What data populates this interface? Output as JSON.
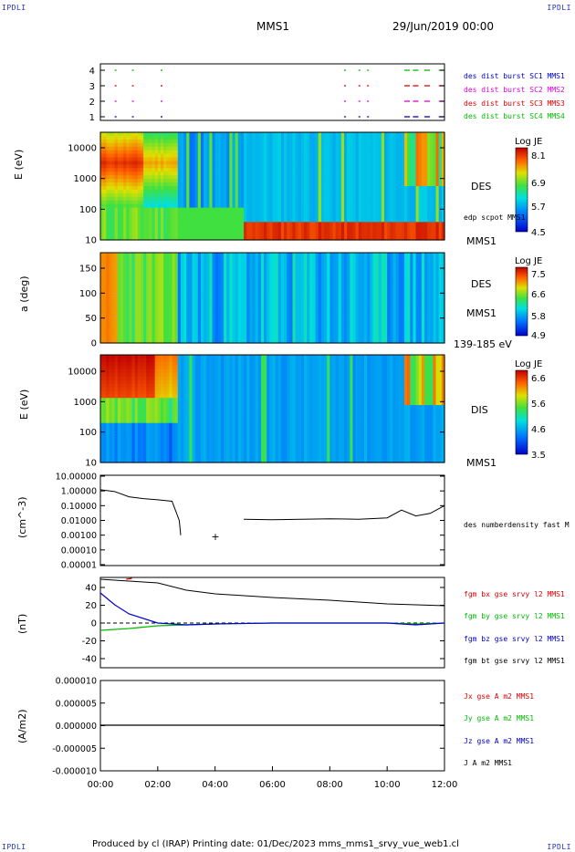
{
  "corners": {
    "tl": "IPDLI",
    "tr": "IPDLI",
    "bl": "IPDLI",
    "br": "IPDLI"
  },
  "header": {
    "mission": "MMS1",
    "date": "29/Jun/2019 00:00"
  },
  "footer": "Produced by cl (IRAP)   Printing date: 01/Dec/2023   mms_mms1_srvy_vue_web1.cl",
  "time_axis": [
    "00:00",
    "02:00",
    "04:00",
    "06:00",
    "08:00",
    "10:00",
    "12:00"
  ],
  "colors": {
    "red": "#dd0000",
    "magenta": "#dd00dd",
    "green": "#00bb00",
    "blue": "#0000cc",
    "black": "#000000"
  },
  "burst_panel": {
    "y_ticks": [
      "1",
      "2",
      "3",
      "4"
    ],
    "legend": [
      {
        "label": "des dist burst SC1 MMS1",
        "color": "#0000cc"
      },
      {
        "label": "des dist burst SC2 MMS2",
        "color": "#dd00dd"
      },
      {
        "label": "des dist burst SC3 MMS3",
        "color": "#dd0000"
      },
      {
        "label": "des dist burst SC4 MMS4",
        "color": "#00bb00"
      }
    ]
  },
  "des_energy": {
    "ylabel": "E (eV)",
    "y_ticks": [
      "10000",
      "1000",
      "100",
      "10"
    ],
    "label": "DES",
    "sc": "MMS1",
    "overlay": "edp scpot MMS1",
    "cbar_title": "Log JE",
    "cbar_ticks": [
      "8.1",
      "6.9",
      "5.7",
      "4.5"
    ]
  },
  "des_pitch": {
    "ylabel": "a (deg)",
    "y_ticks": [
      "150",
      "100",
      "50",
      "0"
    ],
    "label": "DES",
    "sc": "MMS1",
    "range": "139-185 eV",
    "cbar_title": "Log JE",
    "cbar_ticks": [
      "7.5",
      "6.6",
      "5.8",
      "4.9"
    ]
  },
  "dis_energy": {
    "ylabel": "E (eV)",
    "y_ticks": [
      "10000",
      "1000",
      "100",
      "10"
    ],
    "label": "DIS",
    "sc": "MMS1",
    "cbar_title": "Log JE",
    "cbar_ticks": [
      "6.6",
      "5.6",
      "4.6",
      "3.5"
    ]
  },
  "density": {
    "ylabel": "(cm^-3)",
    "y_ticks": [
      "10.00000",
      "1.00000",
      "0.10000",
      "0.01000",
      "0.00100",
      "0.00010",
      "0.00001"
    ],
    "legend": "des numberdensity fast M"
  },
  "bfield": {
    "ylabel": "(nT)",
    "y_ticks": [
      "40",
      "20",
      "0",
      "-20",
      "-40"
    ],
    "legend": [
      {
        "label": "fgm bx gse srvy l2 MMS1",
        "color": "#dd0000"
      },
      {
        "label": "fgm by gse srvy l2 MMS1",
        "color": "#00bb00"
      },
      {
        "label": "fgm bz gse srvy l2 MMS1",
        "color": "#0000cc"
      },
      {
        "label": "fgm bt gse srvy l2 MMS1",
        "color": "#000000"
      }
    ]
  },
  "current": {
    "ylabel": "(A/m2)",
    "y_ticks": [
      "0.000010",
      "0.000005",
      "0.000000",
      "-0.000005",
      "-0.000010"
    ],
    "legend": [
      {
        "label": "Jx gse A m2 MMS1",
        "color": "#dd0000"
      },
      {
        "label": "Jy gse A m2 MMS1",
        "color": "#00bb00"
      },
      {
        "label": "Jz gse A m2 MMS1",
        "color": "#0000cc"
      },
      {
        "label": "J A m2 MMS1",
        "color": "#000000"
      }
    ]
  },
  "chart_data": [
    {
      "type": "scatter",
      "name": "burst flags",
      "x": [
        "00:00",
        "12:00"
      ],
      "ylim": [
        1,
        4
      ]
    },
    {
      "type": "heatmap",
      "name": "DES energy spectrogram",
      "ylim": [
        10,
        30000
      ],
      "log_y": true,
      "colorbar": [
        4.5,
        8.1
      ]
    },
    {
      "type": "heatmap",
      "name": "DES pitch angle",
      "ylim": [
        0,
        180
      ],
      "colorbar": [
        4.9,
        7.5
      ]
    },
    {
      "type": "heatmap",
      "name": "DIS energy spectrogram",
      "ylim": [
        10,
        30000
      ],
      "log_y": true,
      "colorbar": [
        3.5,
        6.6
      ]
    },
    {
      "type": "line",
      "name": "density",
      "ylim": [
        1e-05,
        10
      ],
      "log_y": true,
      "x": [
        0,
        0.5,
        1,
        1.5,
        2,
        2.5,
        2.75,
        2.8,
        3,
        5,
        6,
        7,
        8,
        9,
        10,
        10.5,
        11,
        11.5,
        12
      ],
      "y": [
        1.2,
        0.9,
        0.4,
        0.3,
        0.25,
        0.2,
        0.01,
        0.001,
        0.02,
        0.012,
        0.011,
        0.012,
        0.013,
        0.012,
        0.015,
        0.05,
        0.02,
        0.03,
        0.1
      ]
    },
    {
      "type": "line",
      "name": "B components",
      "ylim": [
        -50,
        50
      ],
      "x": [
        0,
        0.5,
        1,
        2,
        3,
        4,
        6,
        8,
        10,
        11,
        12
      ],
      "bt": [
        48,
        47,
        46,
        44,
        36,
        32,
        28,
        25,
        21,
        20,
        19
      ],
      "bx": [
        48,
        47,
        46,
        44,
        36,
        32,
        28,
        25,
        21,
        20,
        19
      ],
      "by": [
        -8,
        -7,
        -6,
        -3,
        -2,
        -1,
        0,
        0,
        0,
        -1,
        0
      ],
      "bz": [
        33,
        20,
        10,
        0,
        -2,
        -1,
        0,
        0,
        0,
        -2,
        0
      ]
    },
    {
      "type": "line",
      "name": "current density",
      "ylim": [
        -1e-05,
        1e-05
      ],
      "x": [
        0,
        12
      ],
      "y": [
        0,
        0
      ]
    }
  ]
}
